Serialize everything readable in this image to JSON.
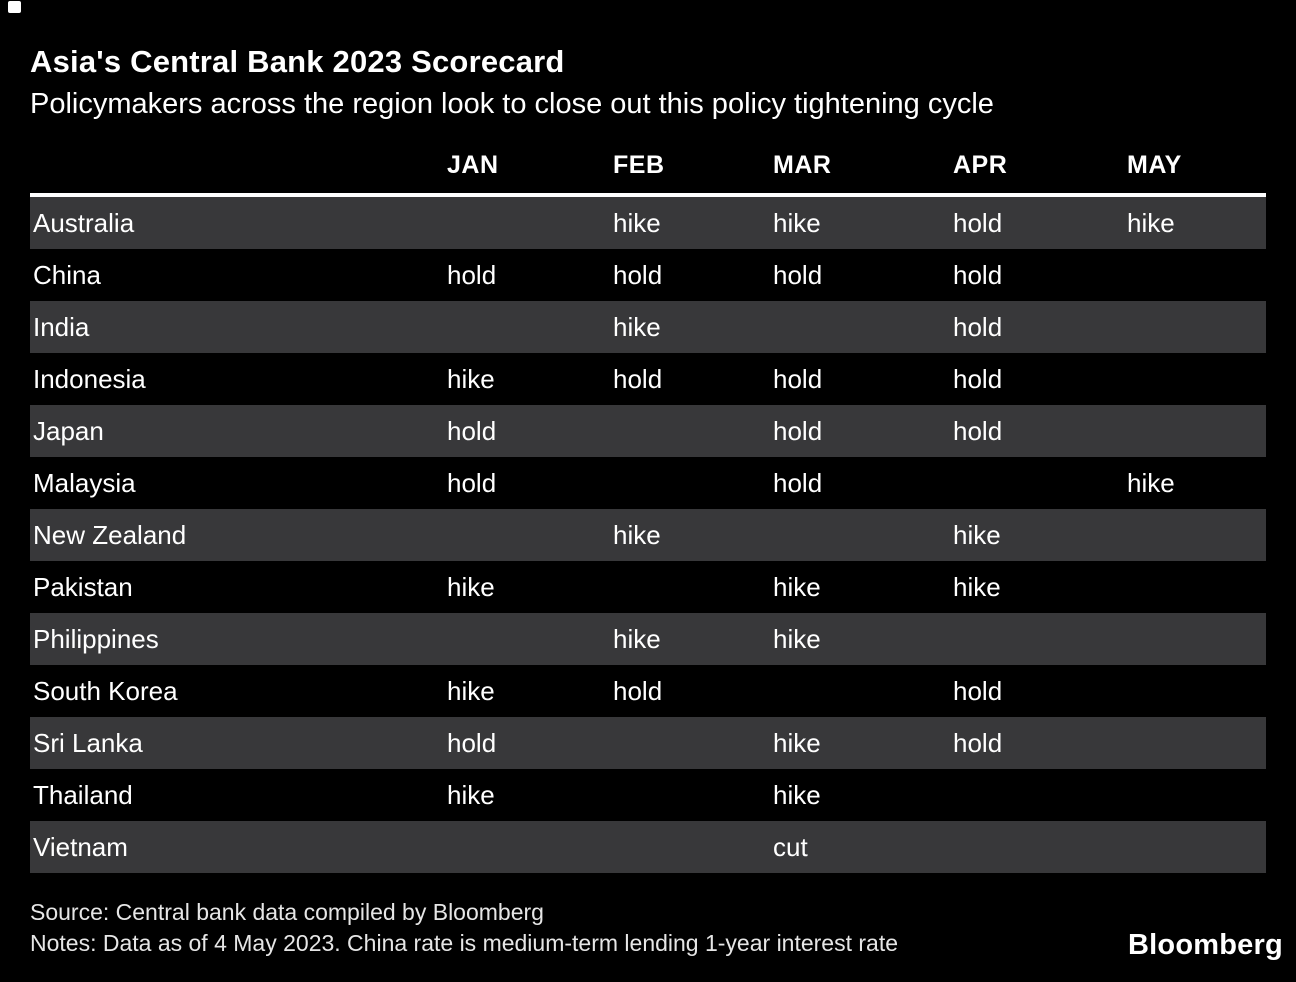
{
  "page": {
    "title": "Asia's Central Bank 2023 Scorecard",
    "subtitle": "Policymakers across the region look to close out this policy tightening cycle"
  },
  "chart_data": {
    "type": "table",
    "title": "Asia's Central Bank 2023 Scorecard",
    "subtitle": "Policymakers across the region look to close out this policy tightening cycle",
    "columns": [
      "JAN",
      "FEB",
      "MAR",
      "APR",
      "MAY"
    ],
    "rows": [
      {
        "label": "Australia",
        "values": [
          "",
          "hike",
          "hike",
          "hold",
          "hike"
        ]
      },
      {
        "label": "China",
        "values": [
          "hold",
          "hold",
          "hold",
          "hold",
          ""
        ]
      },
      {
        "label": "India",
        "values": [
          "",
          "hike",
          "",
          "hold",
          ""
        ]
      },
      {
        "label": "Indonesia",
        "values": [
          "hike",
          "hold",
          "hold",
          "hold",
          ""
        ]
      },
      {
        "label": "Japan",
        "values": [
          "hold",
          "",
          "hold",
          "hold",
          ""
        ]
      },
      {
        "label": "Malaysia",
        "values": [
          "hold",
          "",
          "hold",
          "",
          "hike"
        ]
      },
      {
        "label": "New Zealand",
        "values": [
          "",
          "hike",
          "",
          "hike",
          ""
        ]
      },
      {
        "label": "Pakistan",
        "values": [
          "hike",
          "",
          "hike",
          "hike",
          ""
        ]
      },
      {
        "label": "Philippines",
        "values": [
          "",
          "hike",
          "hike",
          "",
          ""
        ]
      },
      {
        "label": "South Korea",
        "values": [
          "hike",
          "hold",
          "",
          "hold",
          ""
        ]
      },
      {
        "label": "Sri Lanka",
        "values": [
          "hold",
          "",
          "hike",
          "hold",
          ""
        ]
      },
      {
        "label": "Thailand",
        "values": [
          "hike",
          "",
          "hike",
          "",
          ""
        ]
      },
      {
        "label": "Vietnam",
        "values": [
          "",
          "",
          "cut",
          "",
          ""
        ]
      }
    ],
    "value_vocabulary": [
      "hike",
      "hold",
      "cut"
    ],
    "layout": {
      "row_striping": true,
      "legend_position": "none",
      "grid": false
    }
  },
  "footer": {
    "source": "Source: Central bank data compiled by Bloomberg",
    "notes": "Notes: Data as of 4 May 2023. China rate is medium-term lending 1-year interest rate",
    "brand": "Bloomberg"
  },
  "colors": {
    "background": "#000000",
    "text": "#ffffff",
    "row_stripe": "#38383a",
    "rule": "#ffffff"
  }
}
